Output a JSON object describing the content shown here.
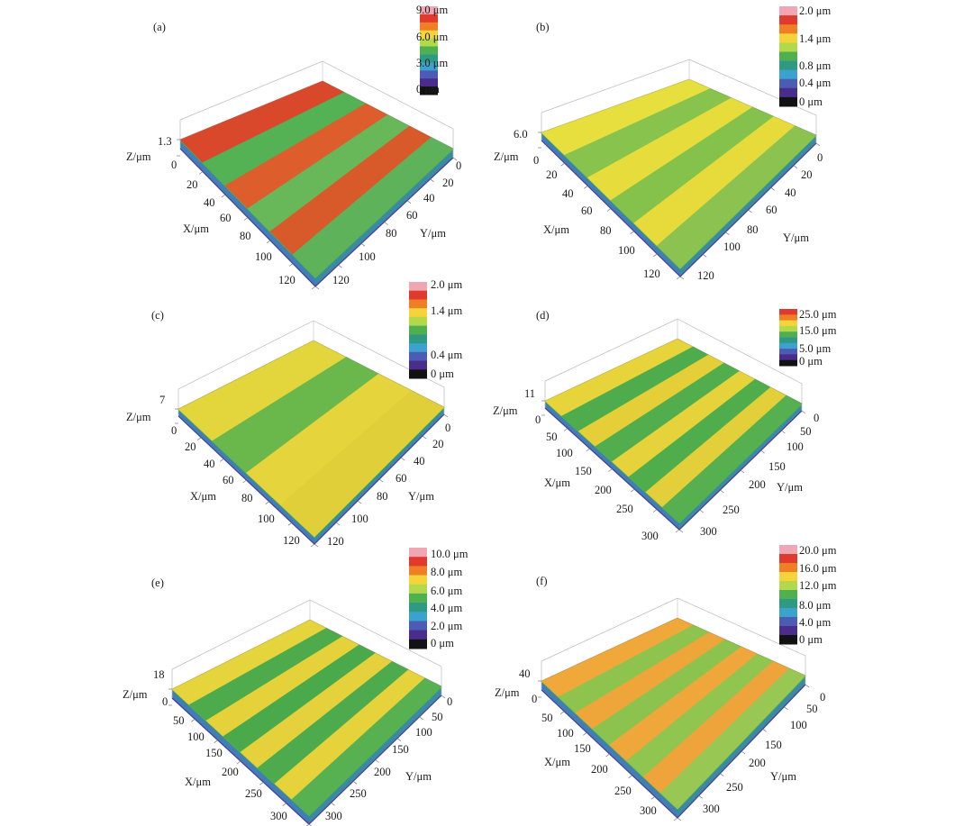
{
  "chart_data": [
    {
      "type": "surface3d",
      "label": "(a)",
      "colorbar": {
        "unit": "μm",
        "ticks": [
          "9.0 μm",
          "6.0 μm",
          "3.0 μm",
          "0 μm"
        ],
        "colors": [
          "#f0a6b3",
          "#e0392e",
          "#f07e25",
          "#f4d43a",
          "#b3d84a",
          "#4fb050",
          "#2f9a83",
          "#3aa2cc",
          "#4c5cb4",
          "#4a2c8a",
          "#121212"
        ]
      },
      "z_axis": {
        "label": "Z/μm",
        "ticks": [
          "1.3",
          "0"
        ]
      },
      "x_axis": {
        "label": "X/μm",
        "ticks": [
          "20",
          "40",
          "60",
          "80",
          "100",
          "120"
        ]
      },
      "y_axis": {
        "label": "Y/μm",
        "ticks": [
          "0",
          "20",
          "40",
          "60",
          "80",
          "100",
          "120"
        ]
      },
      "stripes": [
        "#d9482b",
        "#54b154",
        "#dd5d2c",
        "#68b85a",
        "#d85a2a",
        "#5eb35a"
      ]
    },
    {
      "type": "surface3d",
      "label": "(b)",
      "colorbar": {
        "unit": "μm",
        "ticks": [
          "2.0 μm",
          "1.4 μm",
          "0.8 μm",
          "0.4 μm",
          "0 μm"
        ],
        "colors": [
          "#f0a6b3",
          "#e0392e",
          "#f07e25",
          "#f4d43a",
          "#b3d84a",
          "#4fb050",
          "#2f9a83",
          "#3aa2cc",
          "#4c5cb4",
          "#4a2c8a",
          "#121212"
        ]
      },
      "z_axis": {
        "label": "Z/μm",
        "ticks": [
          "6.0",
          "0"
        ]
      },
      "x_axis": {
        "label": "X/μm",
        "ticks": [
          "20",
          "40",
          "60",
          "80",
          "100",
          "120"
        ]
      },
      "y_axis": {
        "label": "Y/μm",
        "ticks": [
          "0",
          "20",
          "40",
          "60",
          "80",
          "100",
          "120"
        ]
      },
      "stripes": [
        "#e6df3e",
        "#88c34e",
        "#e6dd3c",
        "#84c24c",
        "#e6db3b",
        "#8cc350"
      ]
    },
    {
      "type": "surface3d",
      "label": "(c)",
      "colorbar": {
        "unit": "μm",
        "ticks": [
          "2.0 μm",
          "1.4 μm",
          "0.4 μm",
          "0 μm"
        ],
        "colors": [
          "#f0a6b3",
          "#e0392e",
          "#f07e25",
          "#f4d43a",
          "#b3d84a",
          "#4fb050",
          "#2f9a83",
          "#3aa2cc",
          "#4c5cb4",
          "#4a2c8a",
          "#121212"
        ]
      },
      "z_axis": {
        "label": "Z/μm",
        "ticks": [
          "7",
          "0"
        ]
      },
      "x_axis": {
        "label": "X/μm",
        "ticks": [
          "20",
          "40",
          "60",
          "80",
          "100",
          "120"
        ]
      },
      "y_axis": {
        "label": "Y/μm",
        "ticks": [
          "0",
          "20",
          "40",
          "60",
          "80",
          "100",
          "120"
        ]
      },
      "stripes": [
        "#e3d53c",
        "#6ab84c",
        "#e5d43b",
        "#e1cf3a"
      ]
    },
    {
      "type": "surface3d",
      "label": "(d)",
      "colorbar": {
        "unit": "μm",
        "ticks": [
          "25.0 μm",
          "15.0 μm",
          "5.0 μm",
          "0 μm"
        ],
        "colors": [
          "#e0392e",
          "#f07e25",
          "#f4d43a",
          "#b3d84a",
          "#4fb050",
          "#2f9a83",
          "#3aa2cc",
          "#4c5cb4",
          "#4a2c8a",
          "#121212"
        ]
      },
      "z_axis": {
        "label": "Z/μm",
        "ticks": [
          "11",
          "0"
        ]
      },
      "x_axis": {
        "label": "X/μm",
        "ticks": [
          "50",
          "100",
          "150",
          "200",
          "250",
          "300"
        ]
      },
      "y_axis": {
        "label": "Y/μm",
        "ticks": [
          "0",
          "50",
          "100",
          "150",
          "200",
          "250",
          "300"
        ]
      },
      "stripes": [
        "#e6d43a",
        "#4fac4c",
        "#e4cf38",
        "#52ae4d",
        "#e6d23a",
        "#50ad4c",
        "#e3cf39",
        "#56b04f"
      ]
    },
    {
      "type": "surface3d",
      "label": "(e)",
      "colorbar": {
        "unit": "μm",
        "ticks": [
          "10.0 μm",
          "8.0 μm",
          "6.0 μm",
          "4.0 μm",
          "2.0 μm",
          "0 μm"
        ],
        "colors": [
          "#f0a6b3",
          "#e0392e",
          "#f07e25",
          "#f4d43a",
          "#b3d84a",
          "#4fb050",
          "#2f9a83",
          "#3aa2cc",
          "#4c5cb4",
          "#4a2c8a",
          "#121212"
        ]
      },
      "z_axis": {
        "label": "Z/μm",
        "ticks": [
          "18",
          "0"
        ]
      },
      "x_axis": {
        "label": "X/μm",
        "ticks": [
          "50",
          "100",
          "150",
          "200",
          "250",
          "300"
        ]
      },
      "y_axis": {
        "label": "Y/μm",
        "ticks": [
          "0",
          "50",
          "100",
          "150",
          "200",
          "250",
          "300"
        ]
      },
      "stripes": [
        "#e6d43c",
        "#4dab4c",
        "#e5d23a",
        "#4aa94b",
        "#e4d13b",
        "#4dab4d",
        "#e6d23b",
        "#58b150"
      ]
    },
    {
      "type": "surface3d",
      "label": "(f)",
      "colorbar": {
        "unit": "μm",
        "ticks": [
          "20.0 μm",
          "16.0 μm",
          "12.0 μm",
          "8.0 μm",
          "4.0 μm",
          "0 μm"
        ],
        "colors": [
          "#f0a6b3",
          "#e0392e",
          "#f07e25",
          "#f4d43a",
          "#b3d84a",
          "#4fb050",
          "#2f9a83",
          "#3aa2cc",
          "#4c5cb4",
          "#4a2c8a",
          "#121212"
        ]
      },
      "z_axis": {
        "label": "Z/μm",
        "ticks": [
          "40",
          "0"
        ]
      },
      "x_axis": {
        "label": "X/μm",
        "ticks": [
          "50",
          "100",
          "150",
          "200",
          "250",
          "300"
        ]
      },
      "y_axis": {
        "label": "Y/μm",
        "ticks": [
          "0",
          "50",
          "100",
          "150",
          "200",
          "250",
          "300"
        ]
      },
      "stripes": [
        "#f0a83a",
        "#8ec44e",
        "#eea53a",
        "#8cc34e",
        "#efa63b",
        "#90c550",
        "#eea43a",
        "#98c853"
      ]
    }
  ]
}
